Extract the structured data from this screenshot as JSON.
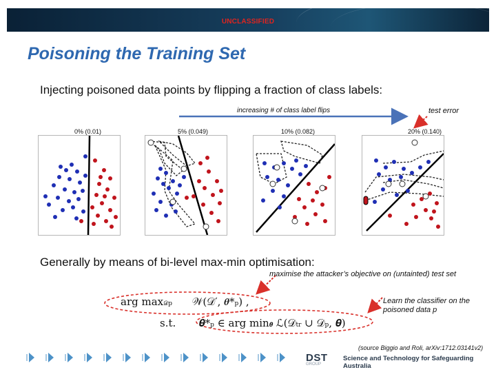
{
  "header": {
    "classification": "UNCLASSIFIED"
  },
  "slide": {
    "title": "Poisoning the Training Set",
    "intro": "Injecting poisoned data points by flipping a fraction of class labels:",
    "arrow_label": "increasing # of class label flips",
    "test_error_label": "test error",
    "panels": [
      {
        "header": "0% (0.01)"
      },
      {
        "header": "5% (0.049)"
      },
      {
        "header": "10% (0.082)"
      },
      {
        "header": "20% (0.140)"
      }
    ],
    "bilevel": "Generally by means of bi-level max-min optimisation:",
    "annotation_objective": "maximise the attacker’s objective on (untainted) test set",
    "annotation_classifier": "Learn the classifier on the poisoned data p",
    "formula": {
      "argmax": "arg max",
      "argmax_sub": "𝒟",
      "argmax_subsub": "p",
      "objective": "𝒲(𝒟′, 𝜽*",
      "objective_sub": "p",
      "objective_end": ") ,",
      "st": "s.t.",
      "theta": "𝜽*",
      "theta_sub": "p",
      "in_argmin": "∈ arg min",
      "argmin_sub": "𝜽",
      "loss": "ℒ(𝒟",
      "loss_tr": "tr",
      "union": " ∪ 𝒟",
      "union_sub": "p",
      "loss_end": ", 𝜽)"
    },
    "source": "(source Biggio and Roli, arXiv:1712.03141v2)",
    "footer": {
      "logo": "DST",
      "logo_sub": "GROUP",
      "tagline": "Science and Technology for Safeguarding Australia"
    }
  },
  "colors": {
    "title": "#2e68b0",
    "classification": "#e0241f",
    "class_blue": "#1f2fb4",
    "class_red": "#c0141c",
    "arrow_blue": "#4a72b8",
    "annotation_red": "#d9302a"
  },
  "chart_data": [
    {
      "type": "scatter",
      "title": "0% (0.01)",
      "series": []
    },
    {
      "type": "scatter",
      "title": "5% (0.049)",
      "series": []
    },
    {
      "type": "scatter",
      "title": "10% (0.082)",
      "series": []
    },
    {
      "type": "scatter",
      "title": "20% (0.140)",
      "series": []
    }
  ]
}
